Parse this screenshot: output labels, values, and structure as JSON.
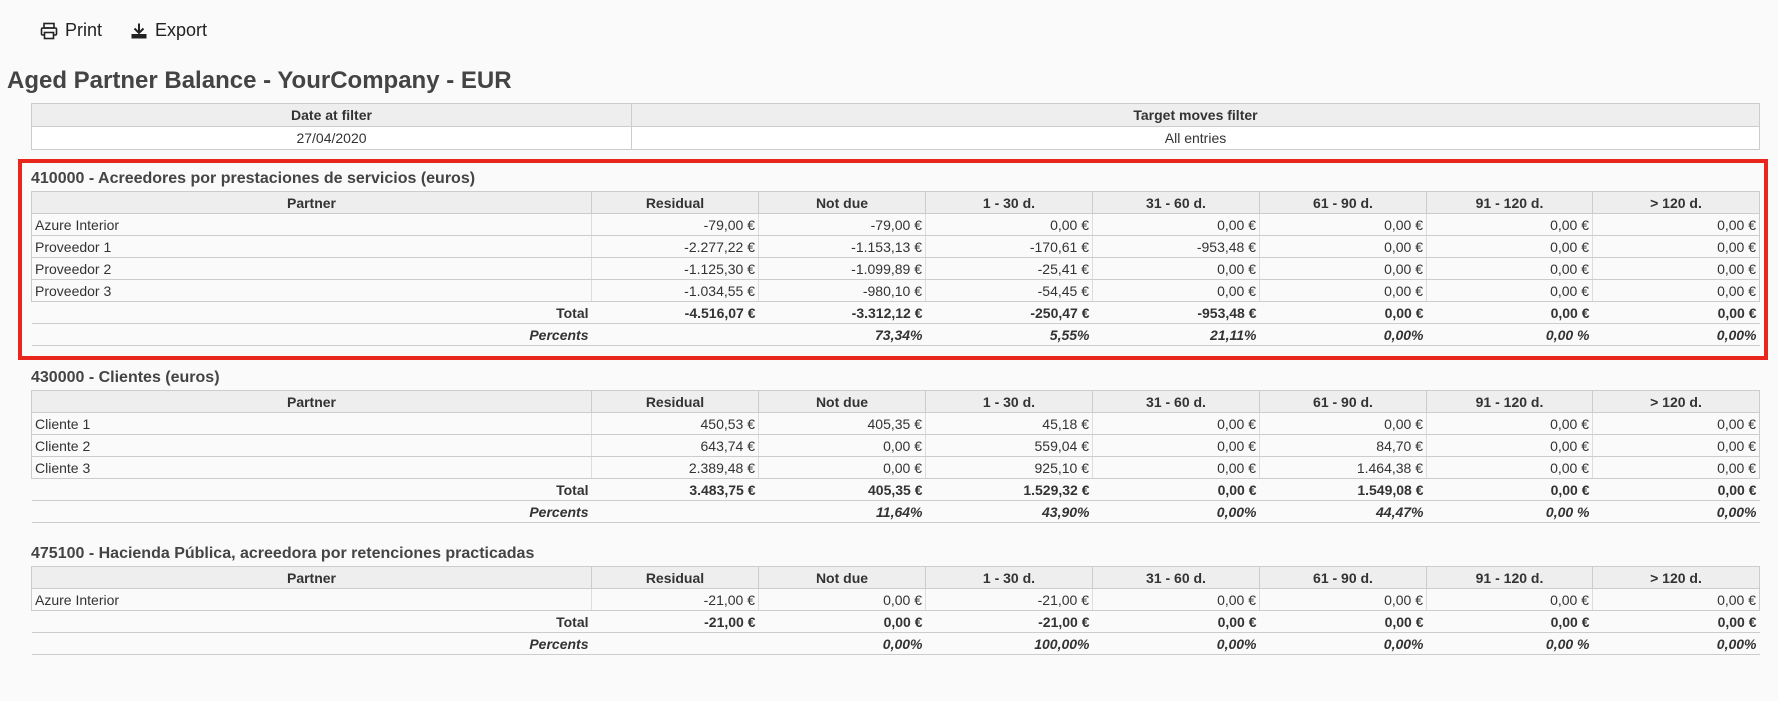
{
  "toolbar": {
    "print_label": "Print",
    "export_label": "Export",
    "print_icon": "printer-icon",
    "export_icon": "download-icon"
  },
  "title": "Aged Partner Balance - YourCompany - EUR",
  "filters": {
    "headers": [
      "Date at filter",
      "Target moves filter"
    ],
    "values": [
      "27/04/2020",
      "All entries"
    ]
  },
  "columns": [
    "Partner",
    "Residual",
    "Not due",
    "1 - 30 d.",
    "31 - 60 d.",
    "61 - 90 d.",
    "91 - 120 d.",
    "> 120 d."
  ],
  "accounts": [
    {
      "title": "410000 - Acreedores por prestaciones de servicios (euros)",
      "rows": [
        [
          "Azure Interior",
          "-79,00 €",
          "-79,00 €",
          "0,00 €",
          "0,00 €",
          "0,00 €",
          "0,00 €",
          "0,00 €"
        ],
        [
          "Proveedor 1",
          "-2.277,22 €",
          "-1.153,13 €",
          "-170,61 €",
          "-953,48 €",
          "0,00 €",
          "0,00 €",
          "0,00 €"
        ],
        [
          "Proveedor 2",
          "-1.125,30 €",
          "-1.099,89 €",
          "-25,41 €",
          "0,00 €",
          "0,00 €",
          "0,00 €",
          "0,00 €"
        ],
        [
          "Proveedor 3",
          "-1.034,55 €",
          "-980,10 €",
          "-54,45 €",
          "0,00 €",
          "0,00 €",
          "0,00 €",
          "0,00 €"
        ]
      ],
      "total": [
        "Total",
        "-4.516,07 €",
        "-3.312,12 €",
        "-250,47 €",
        "-953,48 €",
        "0,00 €",
        "0,00 €",
        "0,00 €"
      ],
      "percents": [
        "Percents",
        "",
        "73,34%",
        "5,55%",
        "21,11%",
        "0,00%",
        "0,00 %",
        "0,00%"
      ]
    },
    {
      "title": "430000 - Clientes (euros)",
      "rows": [
        [
          "Cliente 1",
          "450,53 €",
          "405,35 €",
          "45,18 €",
          "0,00 €",
          "0,00 €",
          "0,00 €",
          "0,00 €"
        ],
        [
          "Cliente 2",
          "643,74 €",
          "0,00 €",
          "559,04 €",
          "0,00 €",
          "84,70 €",
          "0,00 €",
          "0,00 €"
        ],
        [
          "Cliente 3",
          "2.389,48 €",
          "0,00 €",
          "925,10 €",
          "0,00 €",
          "1.464,38 €",
          "0,00 €",
          "0,00 €"
        ]
      ],
      "total": [
        "Total",
        "3.483,75 €",
        "405,35 €",
        "1.529,32 €",
        "0,00 €",
        "1.549,08 €",
        "0,00 €",
        "0,00 €"
      ],
      "percents": [
        "Percents",
        "",
        "11,64%",
        "43,90%",
        "0,00%",
        "44,47%",
        "0,00 %",
        "0,00%"
      ]
    },
    {
      "title": "475100 - Hacienda Pública, acreedora por retenciones practicadas",
      "rows": [
        [
          "Azure Interior",
          "-21,00 €",
          "0,00 €",
          "-21,00 €",
          "0,00 €",
          "0,00 €",
          "0,00 €",
          "0,00 €"
        ]
      ],
      "total": [
        "Total",
        "-21,00 €",
        "0,00 €",
        "-21,00 €",
        "0,00 €",
        "0,00 €",
        "0,00 €",
        "0,00 €"
      ],
      "percents": [
        "Percents",
        "",
        "0,00%",
        "100,00%",
        "0,00%",
        "0,00%",
        "0,00 %",
        "0,00%"
      ]
    }
  ],
  "highlight_color": "#e8261b"
}
